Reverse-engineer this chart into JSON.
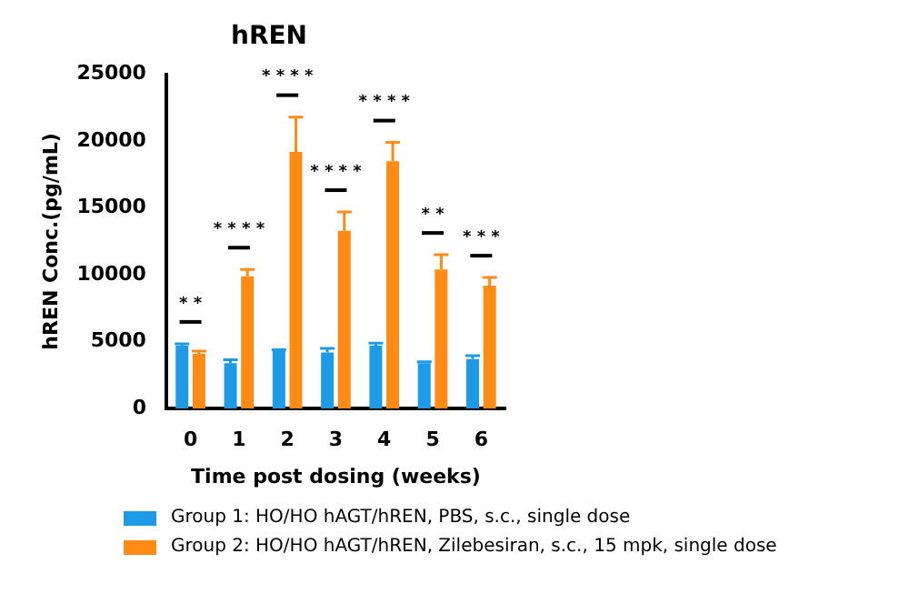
{
  "chart_data": {
    "type": "bar",
    "title": "hREN",
    "xlabel": "Time post dosing (weeks)",
    "ylabel": "hREN Conc.(pg/mL)",
    "categories": [
      "0",
      "1",
      "2",
      "3",
      "4",
      "5",
      "6"
    ],
    "series": [
      {
        "name": "Group 1: HO/HO hAGT/hREN, PBS, s.c., single dose",
        "color": "#1e9be6",
        "values": [
          4700,
          3400,
          4300,
          4200,
          4700,
          3400,
          3700
        ],
        "errors": [
          150,
          250,
          100,
          300,
          200,
          100,
          250
        ]
      },
      {
        "name": "Group 2: HO/HO hAGT/hREN, Zilebesiran, s.c., 15 mpk, single dose",
        "color": "#ff8a14",
        "values": [
          4100,
          9900,
          19200,
          13300,
          18500,
          10400,
          9200
        ],
        "errors": [
          200,
          500,
          2600,
          1400,
          1400,
          1100,
          600
        ]
      }
    ],
    "ylim": [
      0,
      25000
    ],
    "yticks": [
      0,
      5000,
      10000,
      15000,
      20000,
      25000
    ],
    "grid": false,
    "legend": "bottom",
    "annotations": [
      "* *",
      "* * * *",
      "* * * *",
      "* * * *",
      "* * * *",
      "* *",
      "* * *"
    ]
  }
}
